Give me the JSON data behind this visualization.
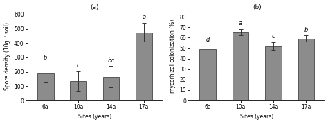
{
  "panel_a": {
    "title": "(a)",
    "categories": [
      "6a",
      "10a",
      "14a",
      "17a"
    ],
    "values": [
      190,
      135,
      165,
      475
    ],
    "errors": [
      65,
      70,
      75,
      65
    ],
    "letters": [
      "b",
      "c",
      "bc",
      "a"
    ],
    "ylabel": "Spore density (10g⁻¹ soil)",
    "xlabel": "Sites (years)",
    "ylim": [
      0,
      620
    ],
    "yticks": [
      0,
      100,
      200,
      300,
      400,
      500,
      600
    ],
    "bar_color": "#8c8c8c",
    "bar_edge_color": "#444444"
  },
  "panel_b": {
    "title": "(b)",
    "categories": [
      "6a",
      "10a",
      "14a",
      "17a"
    ],
    "values": [
      49,
      65.5,
      52,
      59
    ],
    "errors": [
      3.5,
      3.0,
      3.5,
      3.0
    ],
    "letters": [
      "d",
      "a",
      "c",
      "b"
    ],
    "ylabel": "mycorhizal colonization (%)",
    "xlabel": "Sites (years)",
    "ylim": [
      0,
      85
    ],
    "yticks": [
      0,
      10,
      20,
      30,
      40,
      50,
      60,
      70,
      80
    ],
    "bar_color": "#8c8c8c",
    "bar_edge_color": "#444444"
  },
  "tick_fontsize": 5.5,
  "label_fontsize": 5.5,
  "title_fontsize": 6.5,
  "letter_fontsize": 6.0
}
